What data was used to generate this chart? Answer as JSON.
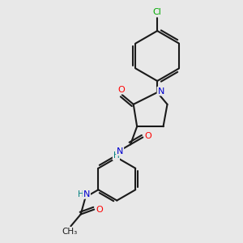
{
  "background_color": "#e8e8e8",
  "bond_color": "#1a1a1a",
  "atom_colors": {
    "N": "#0000cd",
    "O": "#ff0000",
    "Cl": "#00aa00",
    "C": "#1a1a1a",
    "H": "#008080"
  }
}
